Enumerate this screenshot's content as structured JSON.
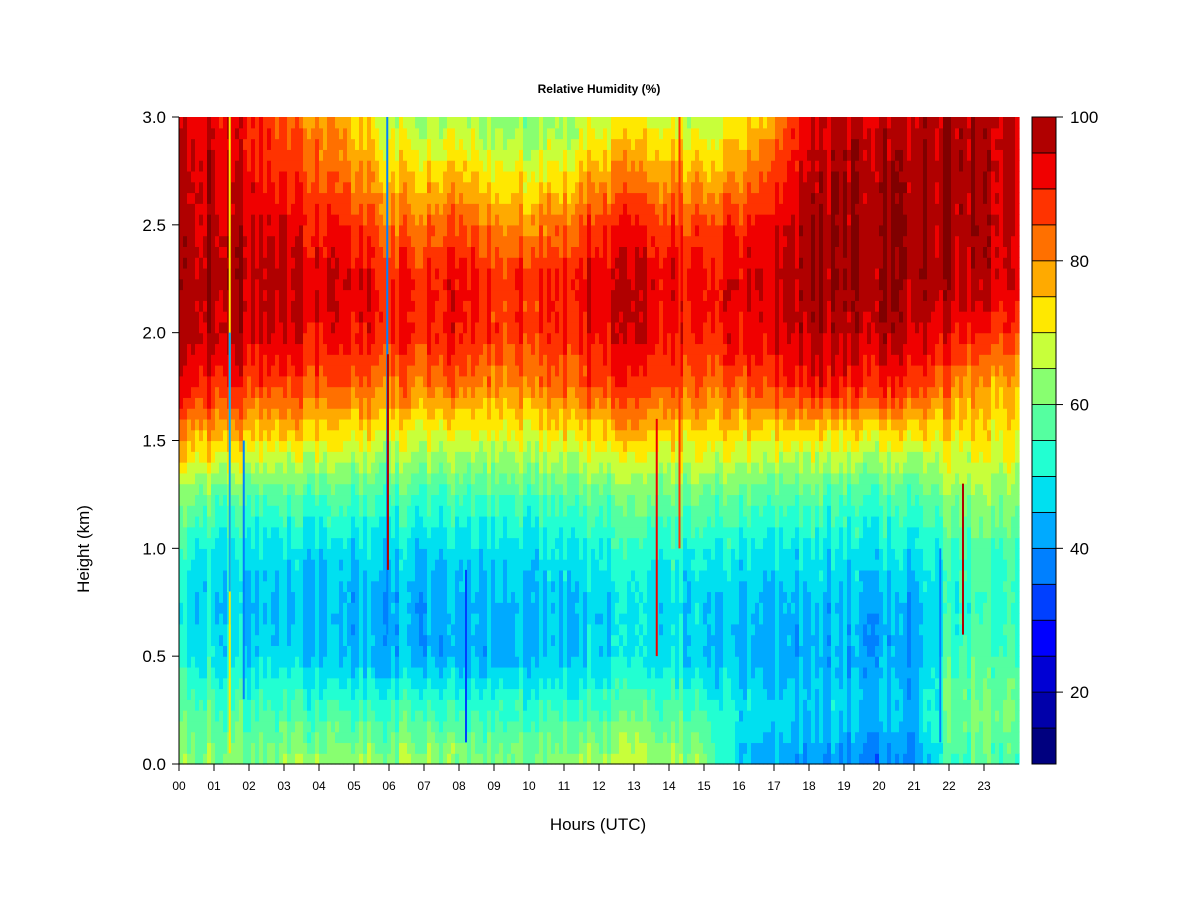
{
  "chart_data": {
    "type": "heatmap",
    "title": "Relative Humidity (%)",
    "xlabel": "Hours (UTC)",
    "ylabel": "Height (km)",
    "xlim": [
      0,
      24
    ],
    "ylim": [
      0.0,
      3.0
    ],
    "x_ticks": [
      "00",
      "01",
      "02",
      "03",
      "04",
      "05",
      "06",
      "07",
      "08",
      "09",
      "10",
      "11",
      "12",
      "13",
      "14",
      "15",
      "16",
      "17",
      "18",
      "19",
      "20",
      "21",
      "22",
      "23"
    ],
    "y_ticks": [
      "0.0",
      "0.5",
      "1.0",
      "1.5",
      "2.0",
      "2.5",
      "3.0"
    ],
    "colorbar": {
      "range": [
        10,
        100
      ],
      "ticks": [
        "20",
        "40",
        "60",
        "80",
        "100"
      ],
      "levels": [
        10,
        15,
        20,
        25,
        30,
        35,
        40,
        45,
        50,
        55,
        60,
        65,
        70,
        75,
        80,
        85,
        90,
        95,
        100
      ],
      "colors": [
        "#00007F",
        "#0000AA",
        "#0000D4",
        "#0000FF",
        "#0040FF",
        "#0080FF",
        "#00AAFF",
        "#00E0F0",
        "#22FFD2",
        "#55FFA0",
        "#88FF70",
        "#C8FF3A",
        "#FFE800",
        "#FFAA00",
        "#FF7000",
        "#FF3300",
        "#F00000",
        "#B00000",
        "#800000"
      ]
    },
    "height_levels_km": [
      0.0,
      0.25,
      0.5,
      0.75,
      1.0,
      1.25,
      1.5,
      1.75,
      2.0,
      2.25,
      2.5,
      2.75,
      3.0
    ],
    "time_hours": [
      0,
      1,
      2,
      3,
      4,
      5,
      6,
      7,
      8,
      9,
      10,
      11,
      12,
      13,
      14,
      15,
      16,
      17,
      18,
      19,
      20,
      21,
      22,
      23,
      24
    ],
    "values_rh_percent": [
      [
        64,
        60,
        52,
        50,
        55,
        64,
        80,
        93,
        99,
        99,
        98,
        97,
        96
      ],
      [
        63,
        58,
        50,
        47,
        51,
        60,
        77,
        91,
        98,
        99,
        98,
        97,
        95
      ],
      [
        62,
        56,
        48,
        45,
        49,
        58,
        74,
        88,
        96,
        98,
        96,
        93,
        90
      ],
      [
        63,
        55,
        47,
        44,
        48,
        57,
        72,
        86,
        94,
        96,
        93,
        88,
        84
      ],
      [
        64,
        55,
        45,
        43,
        47,
        56,
        71,
        84,
        92,
        94,
        90,
        84,
        80
      ],
      [
        63,
        54,
        44,
        43,
        47,
        56,
        70,
        84,
        92,
        94,
        89,
        80,
        75
      ],
      [
        64,
        55,
        44,
        43,
        47,
        56,
        69,
        82,
        90,
        90,
        84,
        75,
        68
      ],
      [
        65,
        56,
        43,
        43,
        47,
        55,
        68,
        82,
        90,
        90,
        83,
        73,
        65
      ],
      [
        62,
        54,
        42,
        43,
        47,
        55,
        68,
        82,
        91,
        92,
        85,
        75,
        66
      ],
      [
        61,
        54,
        43,
        44,
        48,
        56,
        68,
        80,
        88,
        88,
        80,
        70,
        62
      ],
      [
        63,
        55,
        45,
        45,
        49,
        57,
        70,
        82,
        89,
        90,
        82,
        71,
        62
      ],
      [
        64,
        56,
        46,
        46,
        50,
        58,
        71,
        84,
        90,
        91,
        84,
        73,
        64
      ],
      [
        64,
        56,
        47,
        47,
        51,
        59,
        72,
        86,
        93,
        94,
        88,
        78,
        68
      ],
      [
        68,
        58,
        48,
        48,
        52,
        60,
        74,
        88,
        94,
        95,
        90,
        80,
        70
      ],
      [
        66,
        57,
        48,
        48,
        52,
        60,
        72,
        86,
        92,
        93,
        88,
        78,
        68
      ],
      [
        64,
        55,
        46,
        47,
        51,
        60,
        72,
        84,
        90,
        92,
        87,
        76,
        66
      ],
      [
        46,
        50,
        45,
        46,
        51,
        60,
        72,
        86,
        93,
        95,
        90,
        80,
        72
      ],
      [
        44,
        48,
        44,
        45,
        50,
        58,
        72,
        88,
        95,
        97,
        94,
        88,
        80
      ],
      [
        40,
        46,
        43,
        44,
        49,
        57,
        70,
        90,
        97,
        99,
        98,
        96,
        94
      ],
      [
        40,
        46,
        43,
        44,
        49,
        56,
        70,
        90,
        97,
        99,
        99,
        98,
        96
      ],
      [
        38,
        45,
        42,
        43,
        49,
        56,
        70,
        90,
        97,
        99,
        99,
        98,
        96
      ],
      [
        38,
        44,
        42,
        43,
        49,
        56,
        69,
        88,
        96,
        99,
        99,
        98,
        96
      ],
      [
        55,
        60,
        55,
        52,
        55,
        62,
        72,
        82,
        93,
        98,
        99,
        99,
        98
      ],
      [
        58,
        61,
        57,
        54,
        57,
        64,
        72,
        78,
        90,
        97,
        98,
        98,
        98
      ],
      [
        58,
        61,
        57,
        54,
        57,
        64,
        72,
        78,
        88,
        95,
        96,
        96,
        96
      ]
    ]
  }
}
